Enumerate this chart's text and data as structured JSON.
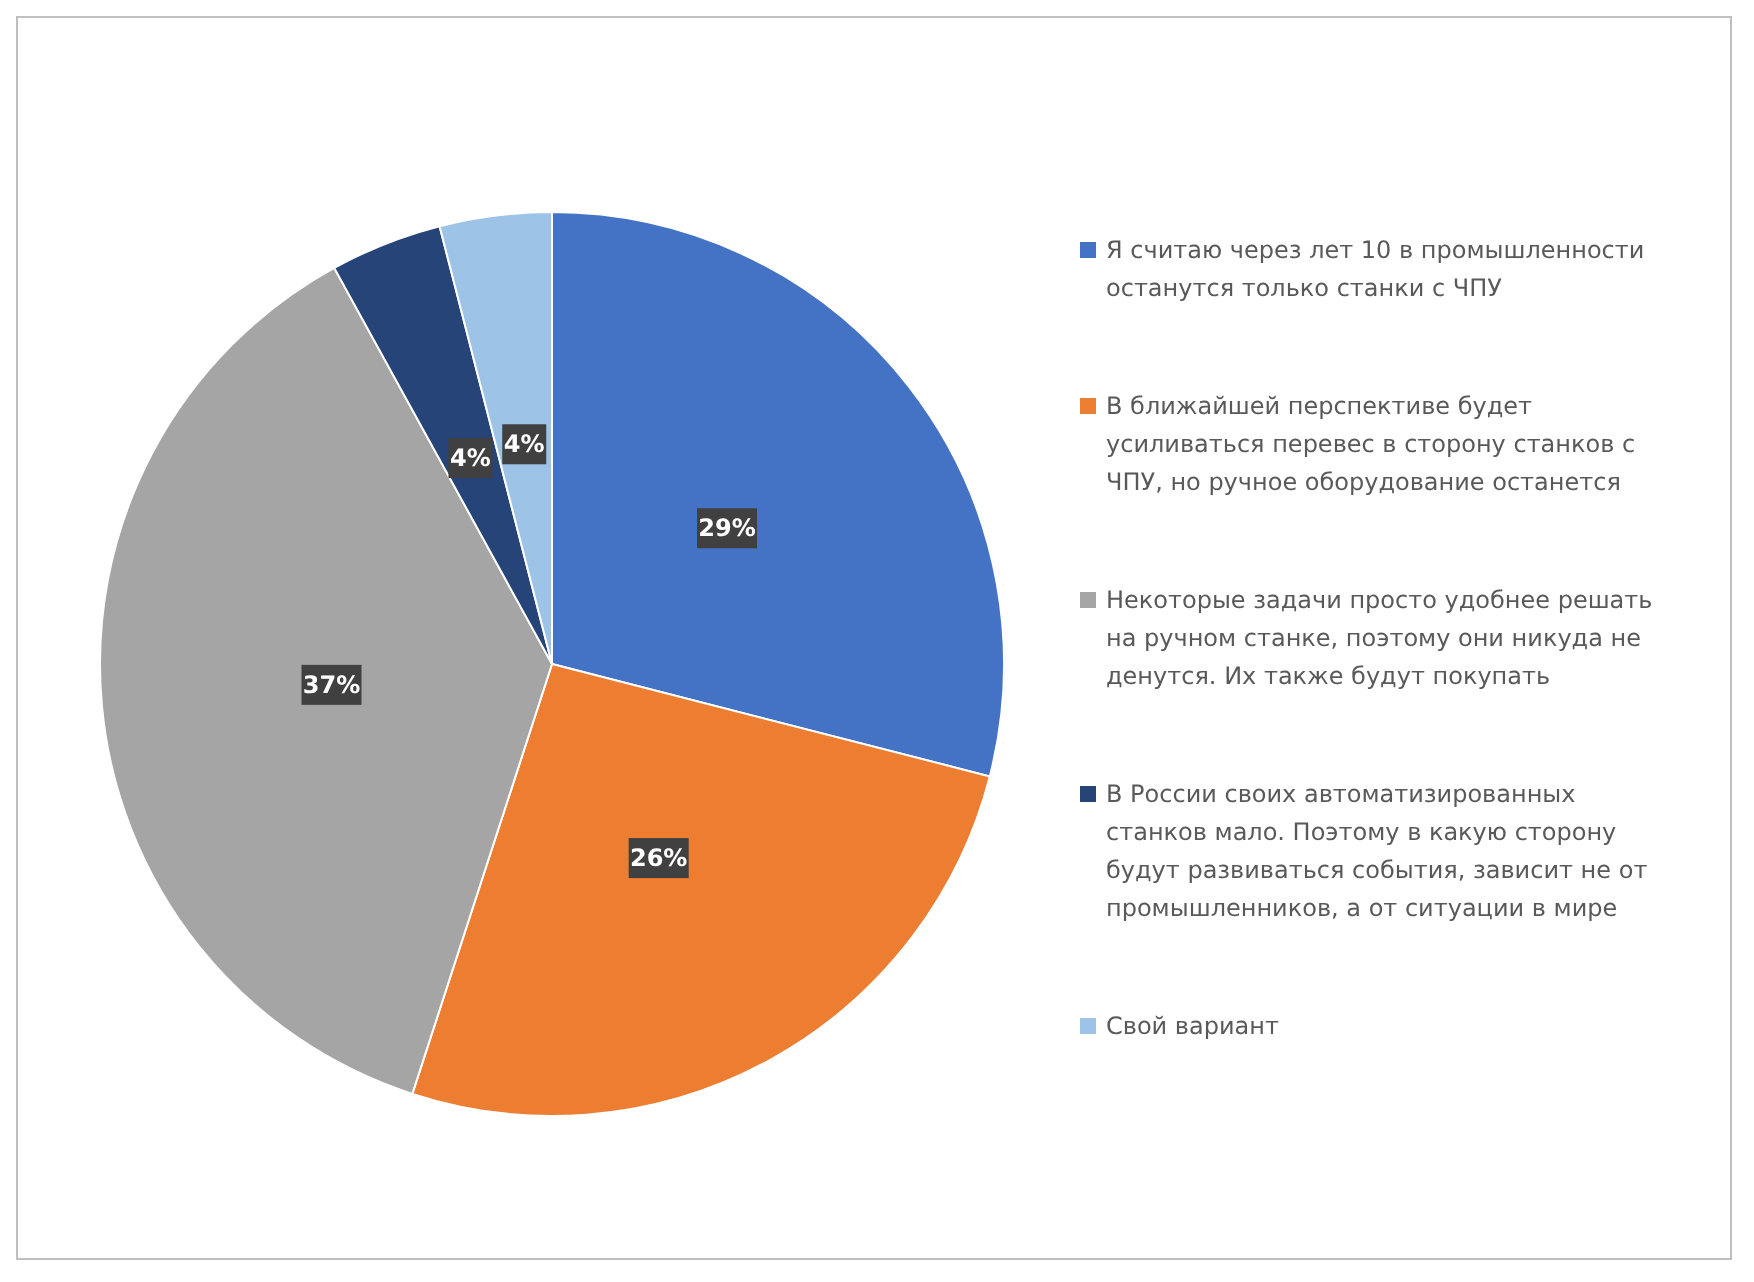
{
  "chart_data": {
    "type": "pie",
    "categories": [
      "Я считаю через лет 10 в промышленности останутся только станки с ЧПУ",
      "В ближайшей перспективе будет усиливаться перевес в сторону станков с ЧПУ, но ручное оборудование останется",
      "Некоторые задачи просто удобнее решать на ручном станке, поэтому они никуда не денутся. Их также будут покупать",
      "В России своих автоматизированных станков мало. Поэтому в какую сторону будут развиваться события, зависит не от промышленников, а от ситуации в мире",
      "Свой вариант"
    ],
    "values": [
      29,
      26,
      37,
      4,
      4
    ],
    "colors": [
      "#4472c4",
      "#ed7d31",
      "#a5a5a5",
      "#264478",
      "#9dc3e6"
    ],
    "value_labels": [
      "29%",
      "26%",
      "37%",
      "4%",
      "4%"
    ],
    "legend": "right"
  }
}
